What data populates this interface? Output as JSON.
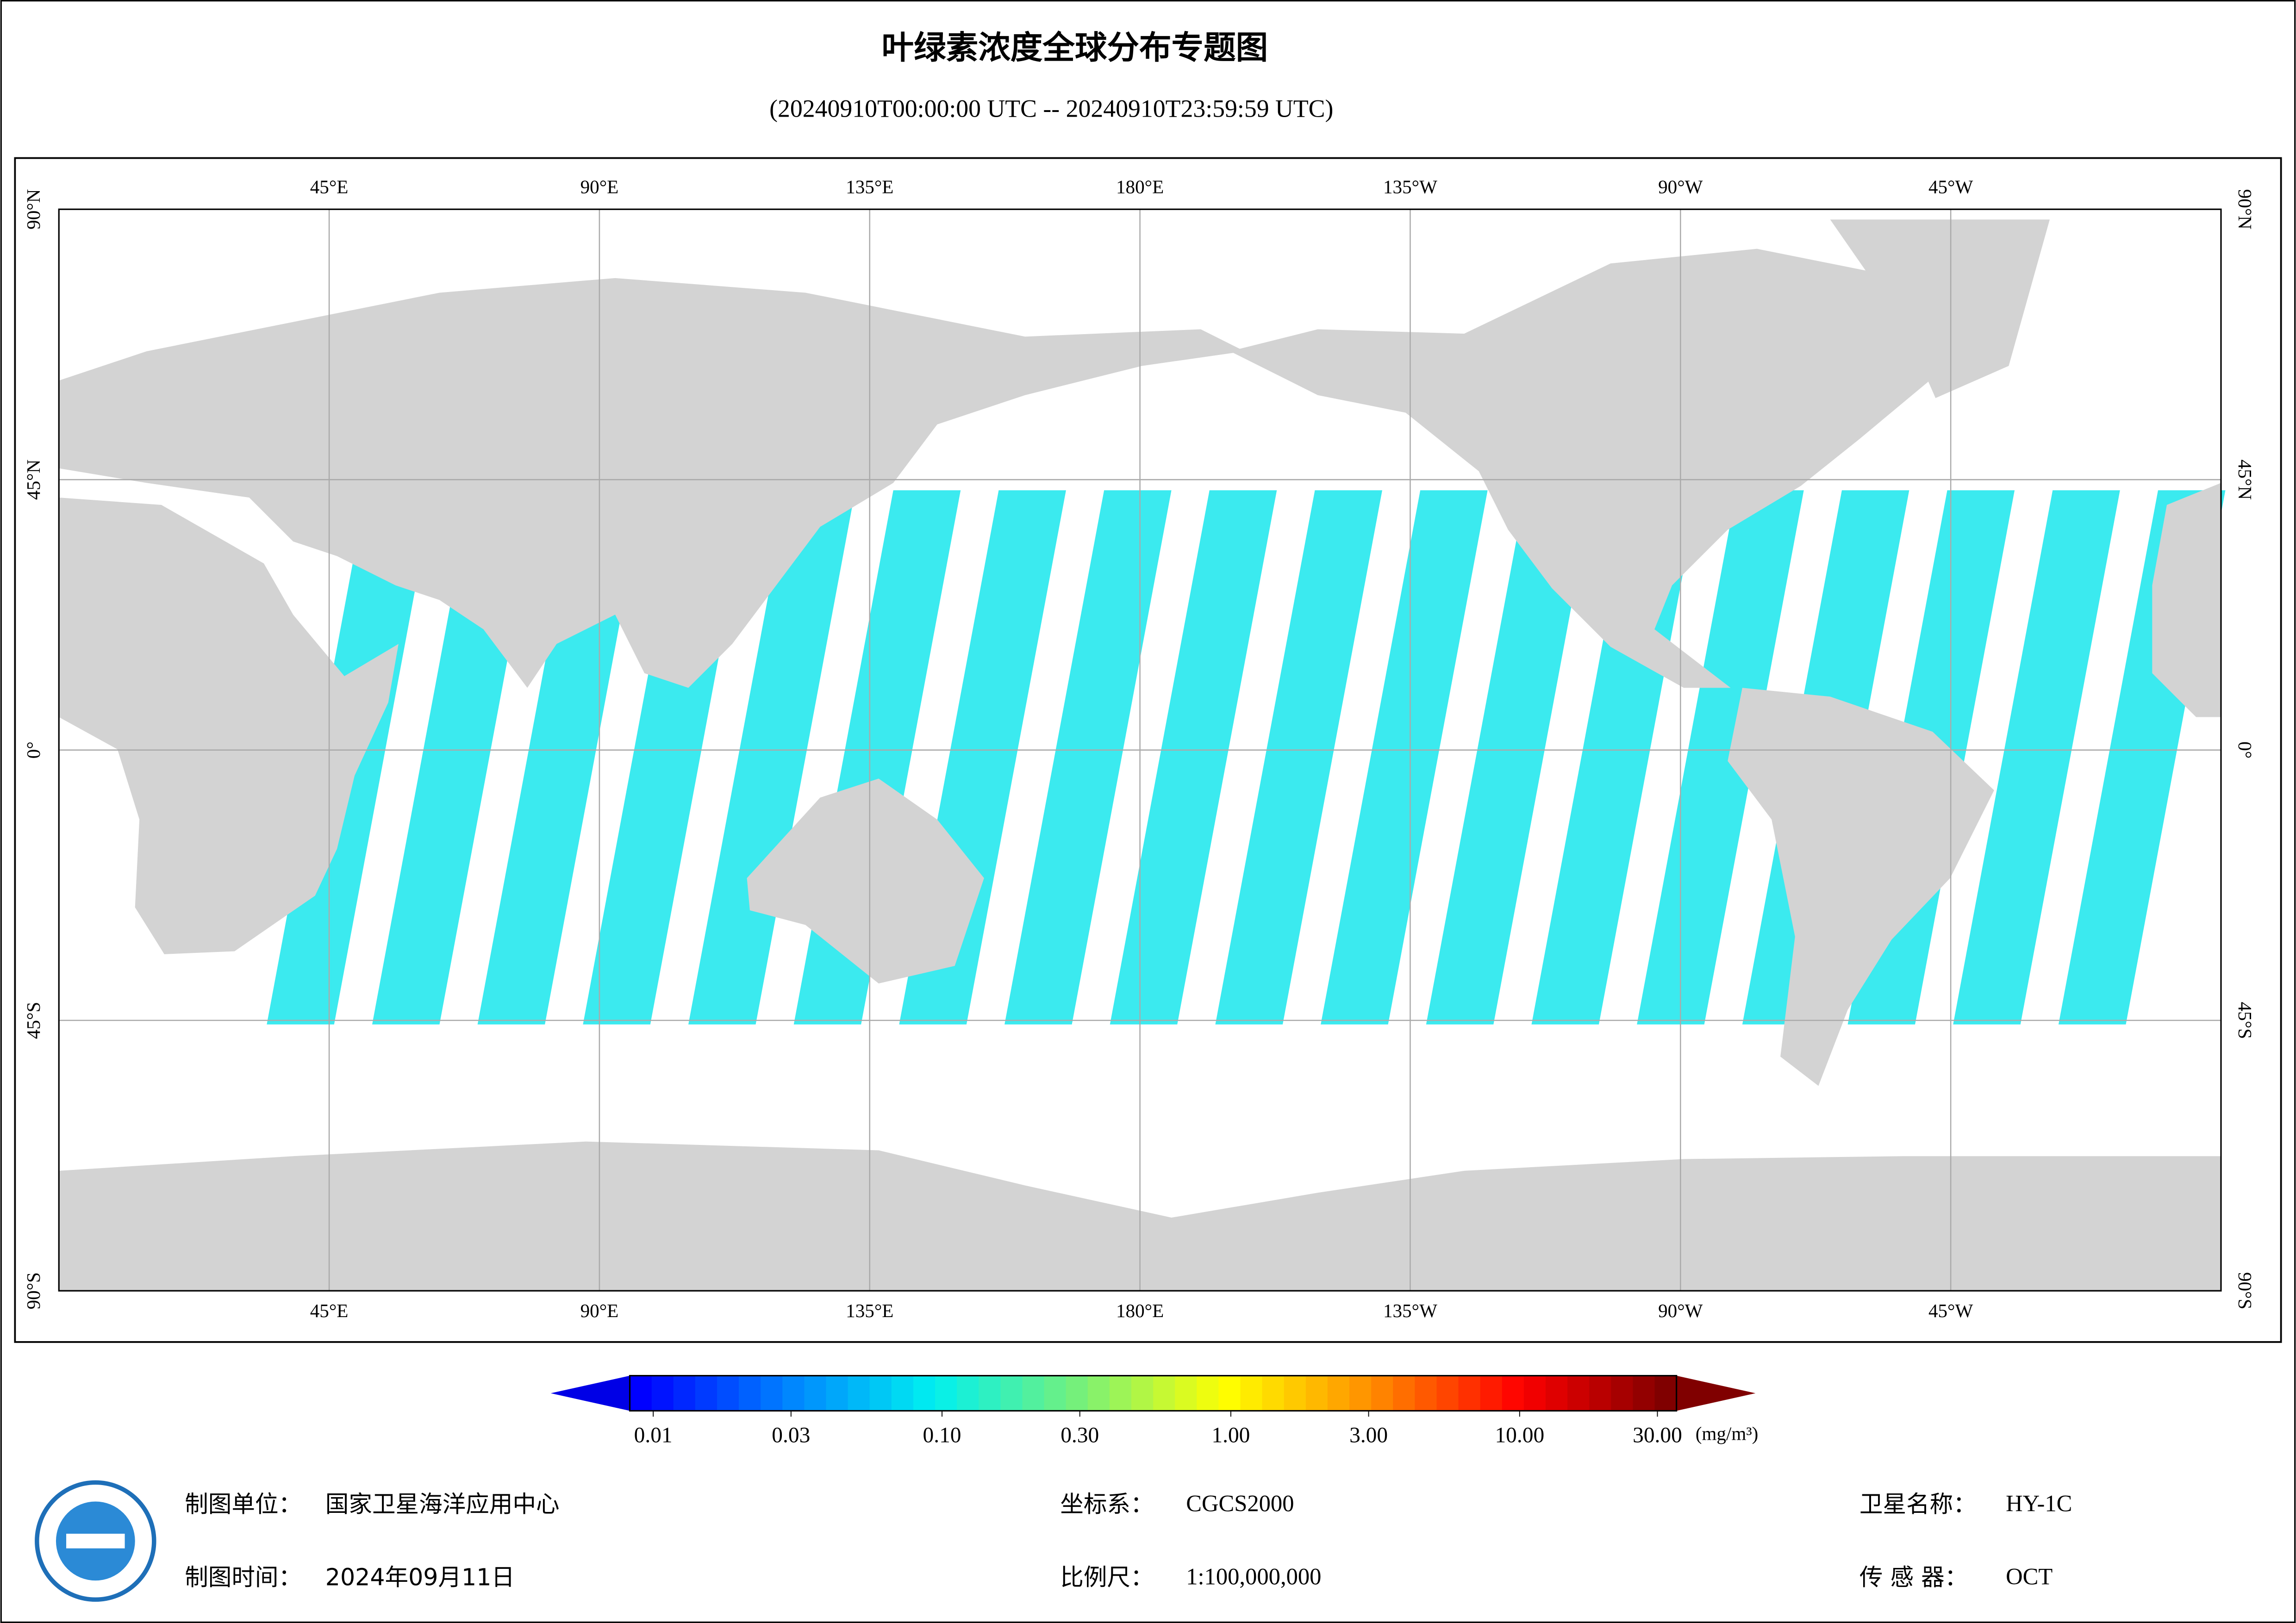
{
  "title": "叶绿素浓度全球分布专题图",
  "subtitle": "(20240910T00:00:00 UTC -- 20240910T23:59:59 UTC)",
  "map": {
    "lon_ticks": [
      {
        "value": 45,
        "label": "45°E"
      },
      {
        "value": 90,
        "label": "90°E"
      },
      {
        "value": 135,
        "label": "135°E"
      },
      {
        "value": 180,
        "label": "180°E"
      },
      {
        "value": 225,
        "label": "135°W"
      },
      {
        "value": 270,
        "label": "90°W"
      },
      {
        "value": 315,
        "label": "45°W"
      }
    ],
    "lat_ticks": [
      {
        "value": 90,
        "label": "90°N"
      },
      {
        "value": 45,
        "label": "45°N"
      },
      {
        "value": 0,
        "label": "0°"
      },
      {
        "value": -45,
        "label": "45°S"
      },
      {
        "value": -90,
        "label": "90°S"
      }
    ]
  },
  "colorbar": {
    "scale": "log",
    "range": [
      0.01,
      30
    ],
    "ticks": [
      {
        "value": 0.01,
        "label": "0.01"
      },
      {
        "value": 0.03,
        "label": "0.03"
      },
      {
        "value": 0.1,
        "label": "0.10"
      },
      {
        "value": 0.3,
        "label": "0.30"
      },
      {
        "value": 1,
        "label": "1.00"
      },
      {
        "value": 3,
        "label": "3.00"
      },
      {
        "value": 10,
        "label": "10.00"
      },
      {
        "value": 30,
        "label": "30.00"
      }
    ],
    "unit": "(mg/m³)"
  },
  "footer": {
    "producer_label": "制图单位：",
    "producer": "国家卫星海洋应用中心",
    "date_label": "制图时间：",
    "date": "2024年09月11日",
    "crs_label": "坐标系：",
    "crs": "CGCS2000",
    "scale_label": "比例尺：",
    "scale": "1:100,000,000",
    "satellite_label": "卫星名称：",
    "satellite": "HY-1C",
    "sensor_label": "传 感 器：",
    "sensor": "OCT"
  }
}
